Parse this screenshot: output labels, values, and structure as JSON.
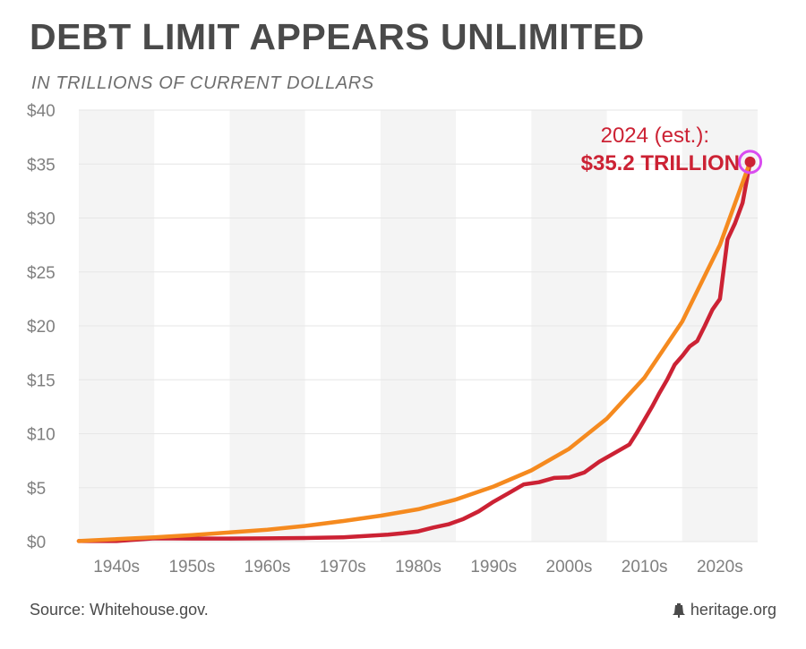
{
  "header": {
    "title": "DEBT LIMIT APPEARS UNLIMITED",
    "subtitle": "IN TRILLIONS OF CURRENT DOLLARS"
  },
  "footer": {
    "source": "Source: Whitehouse.gov.",
    "brand": "heritage.org"
  },
  "colors": {
    "debt_line": "#cc2234",
    "trend_line": "#f58a1f",
    "highlight_ring": "#d94cf0",
    "band": "#f4f4f4",
    "grid": "#e6e6e6",
    "axis_text": "#808080"
  },
  "chart_data": {
    "type": "line",
    "title": "DEBT LIMIT APPEARS UNLIMITED",
    "subtitle": "IN TRILLIONS OF CURRENT DOLLARS",
    "xlabel": "",
    "ylabel": "",
    "xlim": [
      1935,
      2025
    ],
    "ylim": [
      0,
      40
    ],
    "y_ticks": [
      0,
      5,
      10,
      15,
      20,
      25,
      30,
      35,
      40
    ],
    "y_tick_labels": [
      "$0",
      "$5",
      "$10",
      "$15",
      "$20",
      "$25",
      "$30",
      "$35",
      "$40"
    ],
    "x_tick_labels": [
      "1940s",
      "1950s",
      "1960s",
      "1970s",
      "1980s",
      "1990s",
      "2000s",
      "2010s",
      "2020s"
    ],
    "decade_starts": [
      1935,
      1945,
      1955,
      1965,
      1975,
      1985,
      1995,
      2005,
      2015
    ],
    "grid": true,
    "legend": "none",
    "series": [
      {
        "x": [
          1935,
          1940,
          1945,
          1950,
          1955,
          1960,
          1965,
          1970,
          1975,
          1976,
          1978,
          1980,
          1982,
          1984,
          1986,
          1988,
          1990,
          1992,
          1994,
          1996,
          1998,
          2000,
          2002,
          2004,
          2006,
          2008,
          2009,
          2010,
          2011,
          2012,
          2013,
          2014,
          2015,
          2016,
          2017,
          2018,
          2019,
          2020,
          2021,
          2022,
          2023,
          2024
        ],
        "values": [
          0.05,
          0.05,
          0.3,
          0.28,
          0.28,
          0.3,
          0.33,
          0.4,
          0.6,
          0.65,
          0.78,
          0.95,
          1.3,
          1.6,
          2.1,
          2.8,
          3.7,
          4.5,
          5.3,
          5.5,
          5.9,
          5.95,
          6.4,
          7.4,
          8.2,
          9.0,
          10.1,
          11.3,
          12.5,
          13.8,
          15.0,
          16.4,
          17.2,
          18.1,
          18.6,
          20.0,
          21.5,
          22.5,
          28.0,
          29.5,
          31.4,
          35.2
        ]
      },
      {
        "x": [
          1935,
          1940,
          1945,
          1950,
          1955,
          1960,
          1965,
          1970,
          1975,
          1980,
          1985,
          1990,
          1995,
          2000,
          2005,
          2010,
          2015,
          2020,
          2024
        ],
        "values": [
          0.05,
          0.22,
          0.4,
          0.6,
          0.85,
          1.1,
          1.45,
          1.9,
          2.4,
          3.0,
          3.9,
          5.1,
          6.6,
          8.6,
          11.4,
          15.2,
          20.4,
          27.5,
          35.2
        ]
      }
    ],
    "annotation": {
      "year": 2024,
      "value": 35.2,
      "line1": "2024 (est.):",
      "line2": "$35.2 TRILLION"
    }
  }
}
